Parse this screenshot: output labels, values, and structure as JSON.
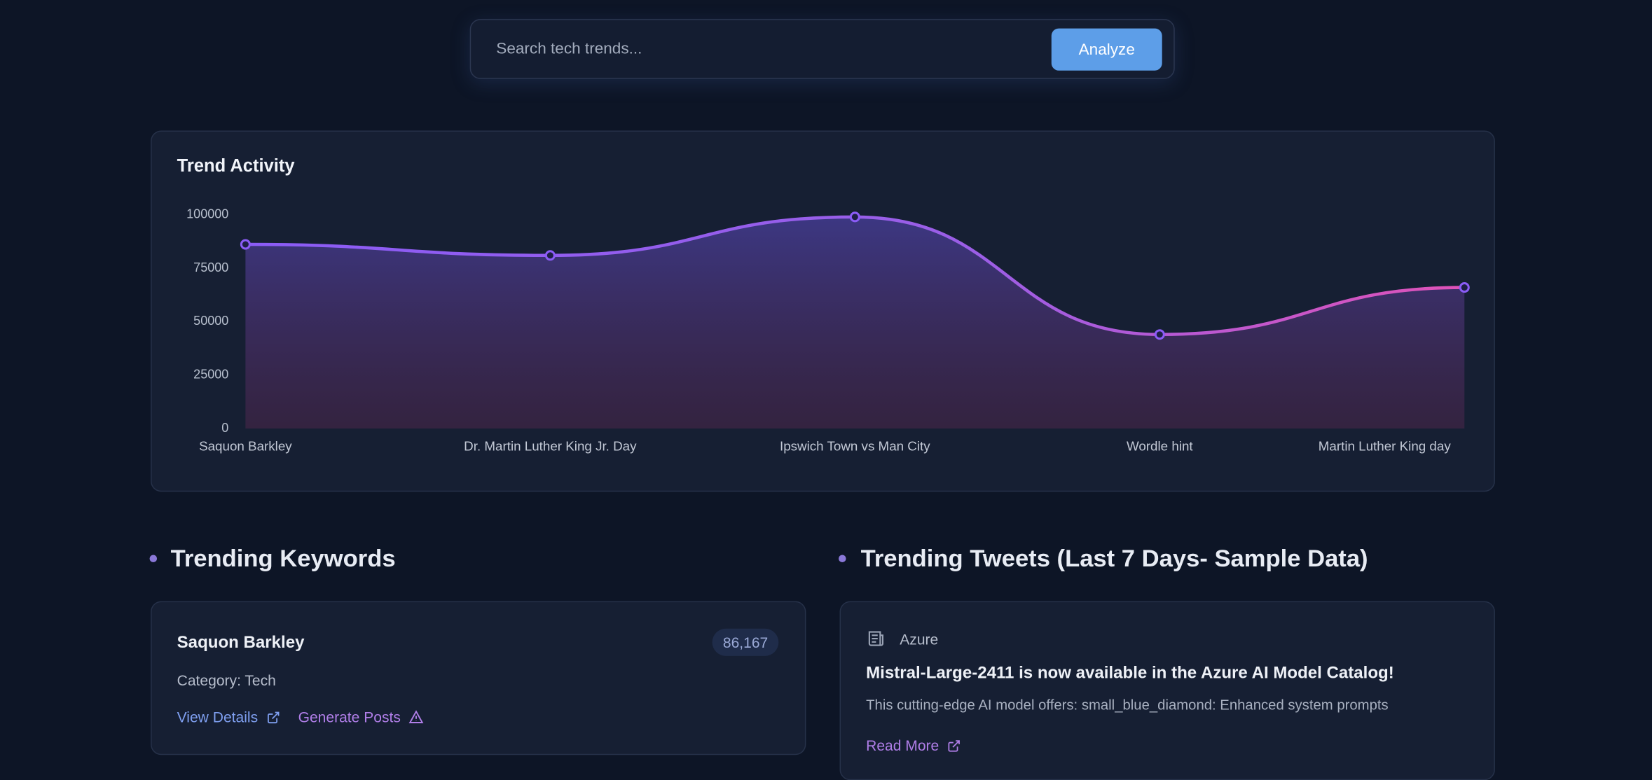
{
  "search": {
    "placeholder": "Search tech trends...",
    "button": "Analyze"
  },
  "chart_data": {
    "type": "line",
    "title": "Trend Activity",
    "categories": [
      "Saquon Barkley",
      "Dr. Martin Luther King Jr. Day",
      "Ipswich Town vs Man City",
      "Wordle hint",
      "Martin Luther King day"
    ],
    "values": [
      86167,
      81000,
      99000,
      44000,
      66000
    ],
    "color": "#8b5cf6",
    "ylim": [
      0,
      100000
    ],
    "yticks": [
      0,
      25000,
      50000,
      75000,
      100000
    ],
    "grid": false
  },
  "keywords": {
    "heading": "Trending Keywords",
    "items": [
      {
        "name": "Saquon Barkley",
        "count": "86,167",
        "category": "Category: Tech",
        "view": "View Details",
        "generate": "Generate Posts"
      }
    ]
  },
  "tweets": {
    "heading": "Trending Tweets (Last 7 Days- Sample Data)",
    "items": [
      {
        "source": "Azure",
        "title": "Mistral-Large-2411 is now available in the Azure AI Model Catalog!",
        "text": "This cutting-edge AI model offers: small_blue_diamond: Enhanced system prompts",
        "link": "Read More"
      }
    ]
  }
}
